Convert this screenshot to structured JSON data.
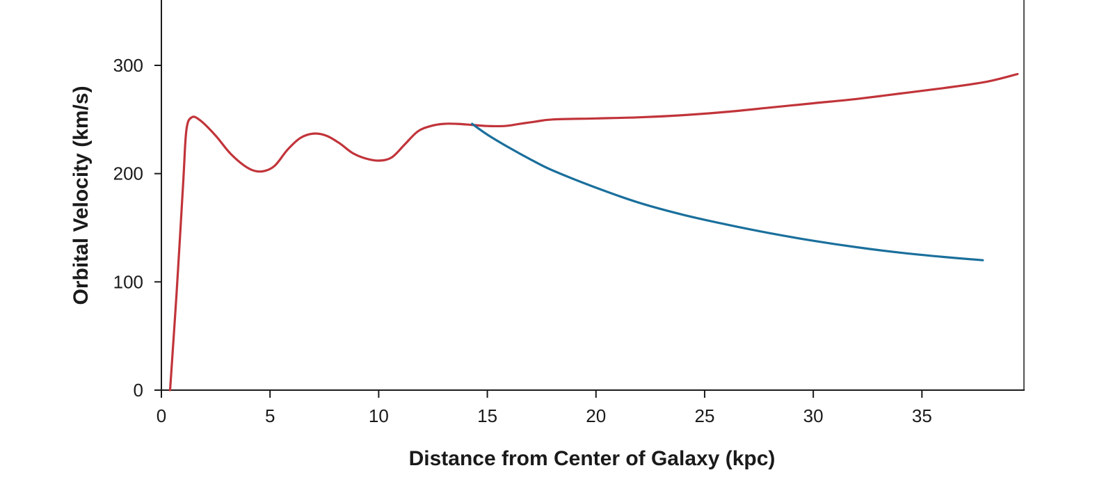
{
  "chart_data": {
    "type": "line",
    "title": "",
    "xlabel": "Distance from Center of Galaxy (kpc)",
    "ylabel": "Orbital Velocity (km/s)",
    "xlim": [
      0,
      39.5
    ],
    "ylim": [
      0,
      300
    ],
    "xticks": [
      0,
      5,
      10,
      15,
      20,
      25,
      30,
      35
    ],
    "yticks": [
      0,
      100,
      200,
      300
    ],
    "grid": false,
    "legend": "none",
    "series": [
      {
        "color": "#c1343a",
        "x": [
          0.4,
          0.7,
          1.0,
          1.15,
          1.4,
          1.8,
          2.5,
          3.2,
          4.0,
          4.6,
          5.2,
          5.8,
          6.4,
          7.0,
          7.6,
          8.2,
          8.8,
          9.4,
          10.0,
          10.6,
          11.2,
          11.8,
          12.4,
          13.0,
          13.6,
          14.3,
          15.0,
          15.8,
          16.5,
          17.2,
          18.0,
          20.0,
          22.0,
          24.0,
          26.0,
          28.0,
          30.0,
          32.0,
          34.0,
          36.0,
          38.0,
          39.4
        ],
        "y": [
          0,
          90,
          190,
          240,
          252,
          249,
          235,
          218,
          205,
          202,
          207,
          222,
          233,
          237,
          235,
          228,
          219,
          214,
          212,
          215,
          227,
          239,
          244,
          246,
          246,
          245,
          244,
          244,
          246,
          248,
          250,
          251,
          252,
          254,
          257,
          261,
          265,
          269,
          274,
          279,
          285,
          292
        ]
      },
      {
        "color": "#1a6f9c",
        "x": [
          14.3,
          15.0,
          16.0,
          17.0,
          18.0,
          20.0,
          22.0,
          24.0,
          26.0,
          28.0,
          30.0,
          32.0,
          34.0,
          36.0,
          37.8
        ],
        "y": [
          246,
          236,
          224,
          213,
          203,
          187,
          173,
          162,
          153,
          145,
          138,
          132,
          127,
          123,
          120
        ]
      }
    ]
  }
}
